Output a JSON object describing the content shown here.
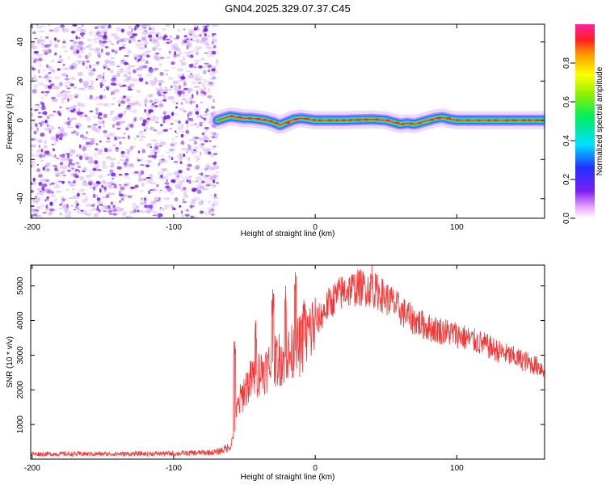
{
  "title": "GN04.2025.329.07.37.C45",
  "colors": {
    "trace": "#f03838",
    "ridge": "#e8283c",
    "noise": "#7a18e8"
  },
  "chart_data": [
    {
      "type": "heatmap",
      "xlabel": "Height of straight line (km)",
      "ylabel": "Frequency (Hz)",
      "xlim": [
        -201,
        162
      ],
      "ylim": [
        -50,
        49
      ],
      "xticks": [
        "-200",
        "-100",
        "0",
        "100"
      ],
      "xtick_values": [
        -200,
        -100,
        0,
        100
      ],
      "yticks": [
        "-40",
        "-20",
        "0",
        "20",
        "40"
      ],
      "ytick_values": [
        -40,
        -20,
        0,
        20,
        40
      ],
      "noise_region_x": [
        -201,
        -69
      ],
      "ridge": {
        "x": [
          -69,
          -65,
          -60,
          -55,
          -50,
          -45,
          -40,
          -35,
          -30,
          -25,
          -20,
          -15,
          -10,
          0,
          20,
          40,
          50,
          55,
          60,
          65,
          70,
          75,
          80,
          85,
          90,
          95,
          100,
          162
        ],
        "y": [
          0,
          1,
          2,
          1.5,
          1,
          1,
          0.5,
          0,
          -1,
          -2.5,
          -1,
          0.5,
          1,
          0,
          0,
          0.5,
          0,
          -1,
          -2,
          -1.5,
          -2,
          -1,
          0,
          1,
          1.5,
          0.5,
          0,
          0
        ]
      },
      "colorbar": {
        "label": "Normalized spectral amplitude",
        "range": [
          0,
          1
        ],
        "ticks": [
          "0.0",
          "0.2",
          "0.4",
          "0.6",
          "0.8"
        ],
        "tick_values": [
          0,
          0.2,
          0.4,
          0.6,
          0.8
        ]
      }
    },
    {
      "type": "line",
      "xlabel": "Height of straight line (km)",
      "ylabel": "SNR (10 * v/v)",
      "xlim": [
        -201,
        162
      ],
      "ylim": [
        0,
        5600
      ],
      "xticks": [
        "-200",
        "-100",
        "0",
        "100"
      ],
      "xtick_values": [
        -200,
        -100,
        0,
        100
      ],
      "yticks": [
        "1000",
        "2000",
        "3000",
        "4000",
        "5000"
      ],
      "ytick_values": [
        1000,
        2000,
        3000,
        4000,
        5000
      ],
      "envelope": {
        "x": [
          -201,
          -150,
          -100,
          -70,
          -60,
          -57,
          -55,
          -50,
          -45,
          -40,
          -35,
          -30,
          -25,
          -20,
          -15,
          -10,
          -5,
          0,
          5,
          10,
          15,
          20,
          25,
          30,
          35,
          40,
          45,
          50,
          55,
          60,
          70,
          80,
          90,
          100,
          110,
          120,
          130,
          140,
          150,
          162
        ],
        "y": [
          150,
          150,
          160,
          200,
          350,
          800,
          1500,
          2000,
          2300,
          2500,
          2600,
          2800,
          2900,
          2950,
          3100,
          3300,
          3600,
          3900,
          4200,
          4500,
          4700,
          4850,
          4900,
          4950,
          4950,
          4900,
          4800,
          4650,
          4500,
          4300,
          4000,
          3800,
          3700,
          3600,
          3450,
          3300,
          3100,
          2950,
          2800,
          2600
        ]
      },
      "spikes": [
        {
          "x": -57,
          "y": 3400
        },
        {
          "x": -42,
          "y": 4000
        },
        {
          "x": -30,
          "y": 4900
        },
        {
          "x": -21,
          "y": 5000
        },
        {
          "x": -14,
          "y": 5400
        },
        {
          "x": -8,
          "y": 4600
        },
        {
          "x": 40,
          "y": 5600
        }
      ]
    }
  ]
}
